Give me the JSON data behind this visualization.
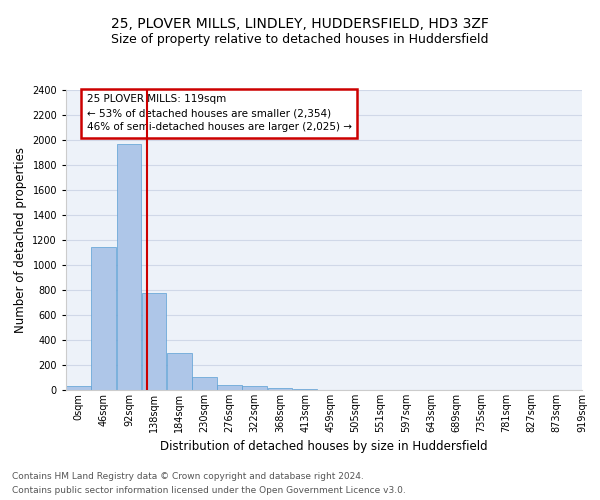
{
  "title_line1": "25, PLOVER MILLS, LINDLEY, HUDDERSFIELD, HD3 3ZF",
  "title_line2": "Size of property relative to detached houses in Huddersfield",
  "xlabel": "Distribution of detached houses by size in Huddersfield",
  "ylabel": "Number of detached properties",
  "bar_color": "#aec6e8",
  "bar_edge_color": "#5a9fd4",
  "bar_heights": [
    30,
    1145,
    1970,
    780,
    300,
    105,
    40,
    30,
    20,
    10,
    0,
    0,
    0,
    0,
    0,
    0,
    0,
    0,
    0,
    0
  ],
  "bin_labels": [
    "0sqm",
    "46sqm",
    "92sqm",
    "138sqm",
    "184sqm",
    "230sqm",
    "276sqm",
    "322sqm",
    "368sqm",
    "413sqm",
    "459sqm",
    "505sqm",
    "551sqm",
    "597sqm",
    "643sqm",
    "689sqm",
    "735sqm",
    "781sqm",
    "827sqm",
    "873sqm",
    "919sqm"
  ],
  "ylim": [
    0,
    2400
  ],
  "yticks": [
    0,
    200,
    400,
    600,
    800,
    1000,
    1200,
    1400,
    1600,
    1800,
    2000,
    2200,
    2400
  ],
  "vline_x": 2.73,
  "annotation_text": "25 PLOVER MILLS: 119sqm\n← 53% of detached houses are smaller (2,354)\n46% of semi-detached houses are larger (2,025) →",
  "annotation_box_color": "#ffffff",
  "annotation_box_edge": "#cc0000",
  "vline_color": "#cc0000",
  "footer_line1": "Contains HM Land Registry data © Crown copyright and database right 2024.",
  "footer_line2": "Contains public sector information licensed under the Open Government Licence v3.0.",
  "bg_color": "#edf2f9",
  "grid_color": "#d0d8e8",
  "title_fontsize": 10,
  "subtitle_fontsize": 9,
  "label_fontsize": 8.5,
  "tick_fontsize": 7,
  "footer_fontsize": 6.5,
  "annotation_fontsize": 7.5
}
